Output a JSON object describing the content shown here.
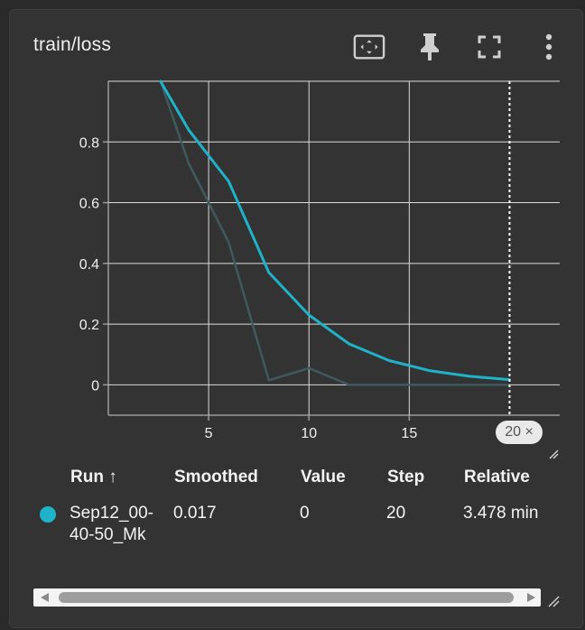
{
  "card": {
    "title": "train/loss"
  },
  "toolbar": {
    "fit_icon": "fit-domain-icon",
    "pin_icon": "pin-icon",
    "fullscreen_icon": "fullscreen-icon",
    "menu_icon": "more-vert-icon"
  },
  "chart_data": {
    "type": "line",
    "title": "",
    "xlabel": "",
    "ylabel": "",
    "xlim": [
      0,
      22.5
    ],
    "ylim": [
      -0.1,
      1.0
    ],
    "x_ticks": [
      "5",
      "10",
      "15"
    ],
    "y_ticks": [
      "0.8",
      "0.6",
      "0.4",
      "0.2",
      "0"
    ],
    "grid": true,
    "series": [
      {
        "role": "smoothed",
        "color": "#1fb3c9",
        "x": [
          2.6,
          4,
          6,
          8,
          10,
          12,
          14,
          16,
          18,
          20
        ],
        "y": [
          1.0,
          0.84,
          0.67,
          0.37,
          0.23,
          0.135,
          0.08,
          0.047,
          0.028,
          0.017
        ]
      },
      {
        "role": "raw",
        "color": "#3f5a5e",
        "x": [
          2.6,
          4,
          6,
          8,
          10,
          12,
          14,
          16,
          18,
          20
        ],
        "y": [
          1.0,
          0.73,
          0.47,
          0.015,
          0.055,
          0.0,
          0.0,
          0.0,
          0.0,
          0.0
        ]
      }
    ],
    "hover_step": 20
  },
  "step_badge": {
    "label": "20 ×"
  },
  "table": {
    "headers": {
      "run": "Run ↑",
      "smoothed": "Smoothed",
      "value": "Value",
      "step": "Step",
      "relative": "Relative"
    },
    "rows": [
      {
        "color": "#1fb3c9",
        "run_line1": "Sep12_00-",
        "run_line2": "40-50_Mk",
        "smoothed": "0.017",
        "value": "0",
        "step": "20",
        "relative": "3.478 min"
      }
    ]
  }
}
